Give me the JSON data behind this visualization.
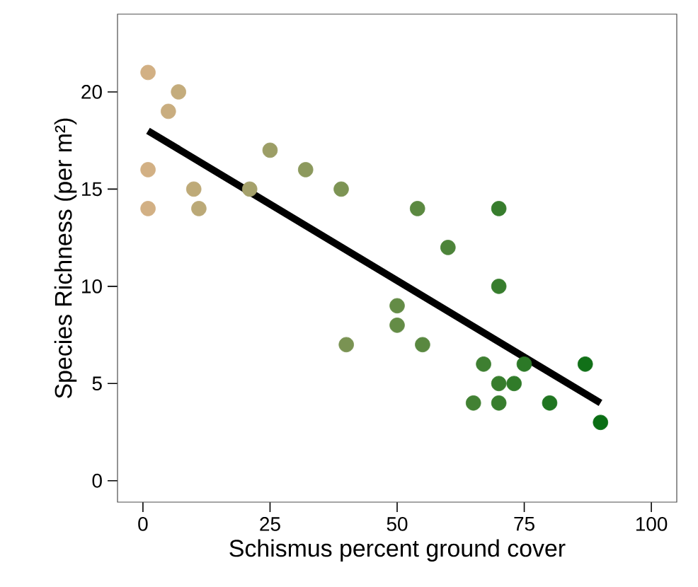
{
  "chart_data": {
    "type": "scatter",
    "xlabel": "Schismus percent ground cover",
    "ylabel": "Species Richness (per m²)",
    "xlim": [
      -5,
      105
    ],
    "ylim": [
      -1.1,
      24
    ],
    "xticks": [
      0,
      25,
      50,
      75,
      100
    ],
    "yticks": [
      0,
      5,
      10,
      15,
      20
    ],
    "series": [
      {
        "marker": "circle",
        "x": [
          1,
          7,
          5,
          1,
          1,
          10,
          11,
          21,
          25,
          32,
          39,
          40,
          50,
          50,
          54,
          55,
          60,
          70,
          70,
          67,
          65,
          70,
          70,
          73,
          75,
          80,
          87,
          90
        ],
        "values": [
          21,
          20,
          19,
          16,
          14,
          15,
          14,
          15,
          17,
          16,
          15,
          7,
          9,
          8,
          14,
          7,
          12,
          14,
          10,
          6,
          4,
          5,
          4,
          5,
          6,
          4,
          6,
          3
        ],
        "colors": [
          "#d2b084",
          "#c4ac7c",
          "#c9ad7f",
          "#d2b084",
          "#d2b084",
          "#beaa78",
          "#bba977",
          "#a5a16b",
          "#9c9e66",
          "#8c995d",
          "#7d9454",
          "#7a9353",
          "#648c46",
          "#648c46",
          "#5b8941",
          "#598840",
          "#4d843a",
          "#377d2d",
          "#377d2d",
          "#3e7f31",
          "#428133",
          "#377d2d",
          "#377d2d",
          "#307b29",
          "#2c7927",
          "#207521",
          "#117018",
          "#0a6e14"
        ]
      },
      {
        "type": "line",
        "x": [
          1,
          90
        ],
        "values": [
          18,
          4
        ],
        "color": "#000000",
        "marker": "none",
        "line_style": "solid"
      }
    ]
  }
}
